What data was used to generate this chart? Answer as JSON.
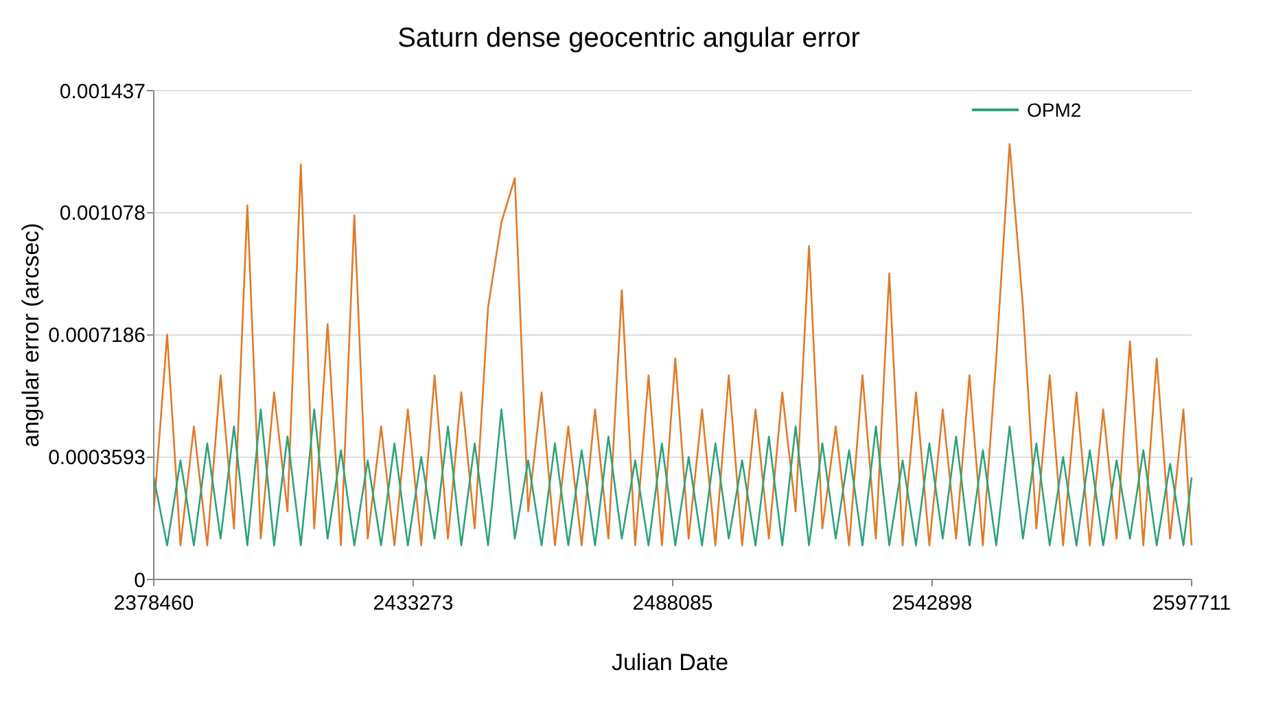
{
  "chart_data": {
    "type": "line",
    "title": "Saturn dense geocentric angular error",
    "xlabel": "Julian Date",
    "ylabel": "angular error (arcsec)",
    "x": [
      2378460,
      2381285,
      2384110,
      2386935,
      2389760,
      2392585,
      2395410,
      2398235,
      2401060,
      2403885,
      2406710,
      2409535,
      2412360,
      2415185,
      2418010,
      2420835,
      2423660,
      2426485,
      2429310,
      2432135,
      2434960,
      2437785,
      2440610,
      2443435,
      2446260,
      2449085,
      2451910,
      2454735,
      2457560,
      2460385,
      2463210,
      2466035,
      2468860,
      2471685,
      2474510,
      2477335,
      2480160,
      2482985,
      2485810,
      2488635,
      2491460,
      2494285,
      2497110,
      2499935,
      2502760,
      2505585,
      2508410,
      2511235,
      2514060,
      2516885,
      2519710,
      2522535,
      2525360,
      2528185,
      2531010,
      2533835,
      2536660,
      2539485,
      2542310,
      2545135,
      2547960,
      2550785,
      2553610,
      2556435,
      2559260,
      2562085,
      2564910,
      2567735,
      2570560,
      2573385,
      2576210,
      2579035,
      2581860,
      2584685,
      2587510,
      2590335,
      2593160,
      2595985,
      2597711
    ],
    "series": [
      {
        "name": "OPM2",
        "color": "#2ca27b",
        "values": [
          0.0003,
          0.0001,
          0.00035,
          0.0001,
          0.0004,
          0.00012,
          0.00045,
          0.0001,
          0.0005,
          0.0001,
          0.00042,
          0.0001,
          0.0005,
          0.00012,
          0.00038,
          0.0001,
          0.00035,
          0.0001,
          0.0004,
          0.0001,
          0.00036,
          0.00012,
          0.00045,
          0.0001,
          0.0004,
          0.0001,
          0.0005,
          0.00012,
          0.00035,
          0.0001,
          0.0004,
          0.0001,
          0.00038,
          0.0001,
          0.00042,
          0.00012,
          0.00035,
          0.0001,
          0.0004,
          0.0001,
          0.00036,
          0.0001,
          0.0004,
          0.00012,
          0.00035,
          0.0001,
          0.00042,
          0.0001,
          0.00045,
          0.0001,
          0.0004,
          0.00012,
          0.00038,
          0.0001,
          0.00045,
          0.0001,
          0.00035,
          0.0001,
          0.0004,
          0.00012,
          0.00042,
          0.0001,
          0.00038,
          0.0001,
          0.00045,
          0.00012,
          0.0004,
          0.0001,
          0.00036,
          0.0001,
          0.00038,
          0.0001,
          0.00035,
          0.00012,
          0.00038,
          0.0001,
          0.00034,
          0.0001,
          0.0003
        ]
      },
      {
        "color": "#e07a28",
        "values": [
          0.0002,
          0.00072,
          0.0001,
          0.00045,
          0.0001,
          0.0006,
          0.00015,
          0.0011,
          0.00012,
          0.00055,
          0.0002,
          0.00122,
          0.00015,
          0.00075,
          0.0001,
          0.00107,
          0.00012,
          0.00045,
          0.0001,
          0.0005,
          0.0001,
          0.0006,
          0.00012,
          0.00055,
          0.00015,
          0.0008,
          0.00105,
          0.00118,
          0.0002,
          0.00055,
          0.0001,
          0.00045,
          0.0001,
          0.0005,
          0.00012,
          0.00085,
          0.0001,
          0.0006,
          0.0001,
          0.00065,
          0.00012,
          0.0005,
          0.0001,
          0.0006,
          0.0001,
          0.0005,
          0.00012,
          0.00055,
          0.0002,
          0.00098,
          0.00015,
          0.00045,
          0.0001,
          0.0006,
          0.00012,
          0.0009,
          0.0001,
          0.00055,
          0.0001,
          0.0005,
          0.00012,
          0.0006,
          0.0001,
          0.00065,
          0.00128,
          0.0008,
          0.00015,
          0.0006,
          0.0001,
          0.00055,
          0.0001,
          0.0005,
          0.00012,
          0.0007,
          0.0001,
          0.00065,
          0.00012,
          0.0005,
          0.0001
        ]
      }
    ],
    "xlim": [
      2378460,
      2597711
    ],
    "xticks": [
      2378460,
      2433273,
      2488085,
      2542898,
      2597711
    ],
    "ylim": [
      0,
      0.001437
    ],
    "yticks": [
      0,
      0.0003593,
      0.0007186,
      0.001078,
      0.001437
    ],
    "grid": "y",
    "legend": "top right"
  }
}
